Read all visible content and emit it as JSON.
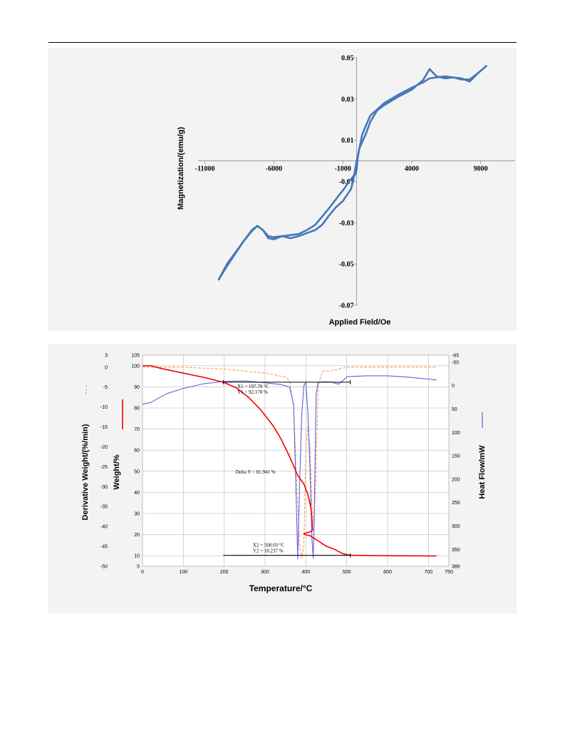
{
  "chart_data": [
    {
      "type": "line",
      "xlabel": "Applied Field/Oe",
      "ylabel": "Magnetization/(emu/g)",
      "xlim": [
        -11500,
        11500
      ],
      "ylim": [
        -0.07,
        0.05
      ],
      "x_ticks": [
        "-11000",
        "-6000",
        "-1000",
        "4000",
        "9000"
      ],
      "y_ticks": [
        "0.05",
        "0.03",
        "0.01",
        "-0.01",
        "-0.03",
        "-0.05",
        "-0.07"
      ],
      "grid": false,
      "color": "#4677b8",
      "series": [
        {
          "x": [
            -10000,
            -9400,
            -8800,
            -8200,
            -7600,
            -7200,
            -6800,
            -6400,
            -6000,
            -5400,
            -4800,
            -4200,
            -3600,
            -3000,
            -2500,
            -2000,
            -1600,
            -1200,
            -900,
            -700,
            -500,
            -350,
            -250,
            -150,
            -50,
            0,
            100,
            200,
            400,
            700,
            1000,
            1500,
            2000,
            3000,
            4000,
            4800,
            5300,
            5800,
            6400,
            7000,
            7600,
            8200,
            8800,
            9400
          ],
          "y": [
            -0.0575,
            -0.05,
            -0.0445,
            -0.039,
            -0.0335,
            -0.0315,
            -0.0335,
            -0.0375,
            -0.038,
            -0.0365,
            -0.036,
            -0.0355,
            -0.0335,
            -0.031,
            -0.027,
            -0.023,
            -0.0195,
            -0.016,
            -0.0135,
            -0.0115,
            -0.0095,
            -0.0085,
            -0.0075,
            -0.007,
            -0.006,
            -0.0045,
            0.003,
            0.006,
            0.009,
            0.0135,
            0.019,
            0.0245,
            0.027,
            0.031,
            0.0345,
            0.039,
            0.0445,
            0.041,
            0.04,
            0.0405,
            0.0395,
            0.0395,
            0.0425,
            0.046
          ]
        },
        {
          "x": [
            9400,
            8800,
            8200,
            7600,
            7000,
            6400,
            5800,
            5300,
            4800,
            4000,
            3000,
            2000,
            1500,
            1000,
            700,
            400,
            200,
            100,
            0,
            -100,
            -250,
            -400,
            -700,
            -1000,
            -1500,
            -2000,
            -2500,
            -3000,
            -3600,
            -4200,
            -4800,
            -5400,
            -6000,
            -6400,
            -6800,
            -7200,
            -7600,
            -8200,
            -8800,
            -9400,
            -10000
          ],
          "y": [
            0.046,
            0.0425,
            0.0385,
            0.04,
            0.0405,
            0.041,
            0.0405,
            0.04,
            0.038,
            0.0355,
            0.032,
            0.028,
            0.025,
            0.022,
            0.0175,
            0.0125,
            0.006,
            0.002,
            0.0,
            -0.004,
            -0.0095,
            -0.0135,
            -0.0165,
            -0.0195,
            -0.0225,
            -0.0265,
            -0.031,
            -0.0335,
            -0.035,
            -0.0365,
            -0.0375,
            -0.0365,
            -0.037,
            -0.0365,
            -0.0335,
            -0.0315,
            -0.034,
            -0.039,
            -0.045,
            -0.051,
            -0.0575
          ]
        }
      ]
    },
    {
      "type": "line",
      "xlabel": "Temperature/°C",
      "ylabel_left2": "Derivative Weight/(%/min)",
      "ylabel_left": "Weight/%",
      "ylabel_right": "Heat Flow/mW",
      "xlim": [
        0,
        750
      ],
      "x_ticks": [
        "0",
        "100",
        "200",
        "300",
        "400",
        "500",
        "600",
        "700",
        "750"
      ],
      "ylim_weight": [
        5,
        105
      ],
      "weight_ticks": [
        "105",
        "100",
        "90",
        "80",
        "70",
        "60",
        "50",
        "40",
        "30",
        "20",
        "10",
        "5"
      ],
      "ylim_deriv": [
        -50,
        3
      ],
      "deriv_ticks": [
        "3",
        "0",
        "-5",
        "-10",
        "-15",
        "-20",
        "-25",
        "-30",
        "-35",
        "-40",
        "-45",
        "-50"
      ],
      "heat_ticks": [
        "-65",
        "-50",
        "0",
        "50",
        "100",
        "150",
        "200",
        "250",
        "300",
        "350",
        "386"
      ],
      "grid": true,
      "annotations": {
        "x1": "X1 = 197.70 °C",
        "y1": "Y1 = 92.178 %",
        "delta": "Delta Y = 81.941 %",
        "x2": "X2 = 508.69 °C",
        "y2": "Y2 = 10.237 %"
      },
      "series": [
        {
          "color": "#f00000",
          "x": [
            0,
            20,
            50,
            100,
            150,
            197.7,
            230,
            260,
            290,
            320,
            340,
            360,
            380,
            395,
            405,
            412,
            415,
            416,
            416,
            412,
            405,
            395,
            398,
            410,
            430,
            450,
            470,
            490,
            500,
            508.69,
            550,
            600,
            650,
            700,
            720
          ],
          "y": [
            100,
            100,
            98.5,
            96.5,
            94.5,
            92.2,
            89.5,
            85,
            79,
            71.5,
            65,
            57,
            48,
            44,
            39,
            33,
            27,
            23,
            22,
            21.5,
            21,
            20.5,
            20,
            19.5,
            17,
            14.5,
            13,
            11,
            10.5,
            10.2,
            10.1,
            10.0,
            9.95,
            9.9,
            9.9
          ]
        },
        {
          "color": "#f5a060",
          "dashed": true,
          "x": [
            0,
            20,
            100,
            200,
            300,
            350,
            360,
            370,
            378,
            385,
            390,
            395,
            400,
            405,
            410,
            415,
            420,
            425,
            430,
            440,
            460,
            480,
            500,
            550,
            600,
            650,
            700,
            720
          ],
          "y": [
            0,
            0,
            0,
            -0.5,
            -1.5,
            -2.5,
            -3.5,
            -10,
            -30,
            -45,
            -48,
            -45,
            -20,
            -15,
            -20,
            -35,
            -40,
            -25,
            -5,
            -1,
            -1,
            -0.5,
            0,
            0,
            0,
            0,
            0,
            0
          ]
        },
        {
          "color": "#6060e0",
          "x": [
            0,
            20,
            60,
            100,
            150,
            200,
            250,
            300,
            340,
            360,
            370,
            375,
            380,
            385,
            390,
            395,
            400,
            405,
            410,
            415,
            418,
            420,
            425,
            430,
            440,
            460,
            480,
            490,
            500,
            550,
            600,
            650,
            700,
            720
          ],
          "y": [
            40,
            36,
            17,
            6,
            -4,
            -9,
            -10,
            -6,
            -2,
            3,
            40,
            200,
            370,
            200,
            60,
            0,
            -7,
            60,
            180,
            330,
            368,
            300,
            20,
            -7,
            -8,
            -8,
            -3,
            -10,
            -19,
            -21,
            -21,
            -18,
            -14,
            -12
          ]
        }
      ]
    }
  ]
}
